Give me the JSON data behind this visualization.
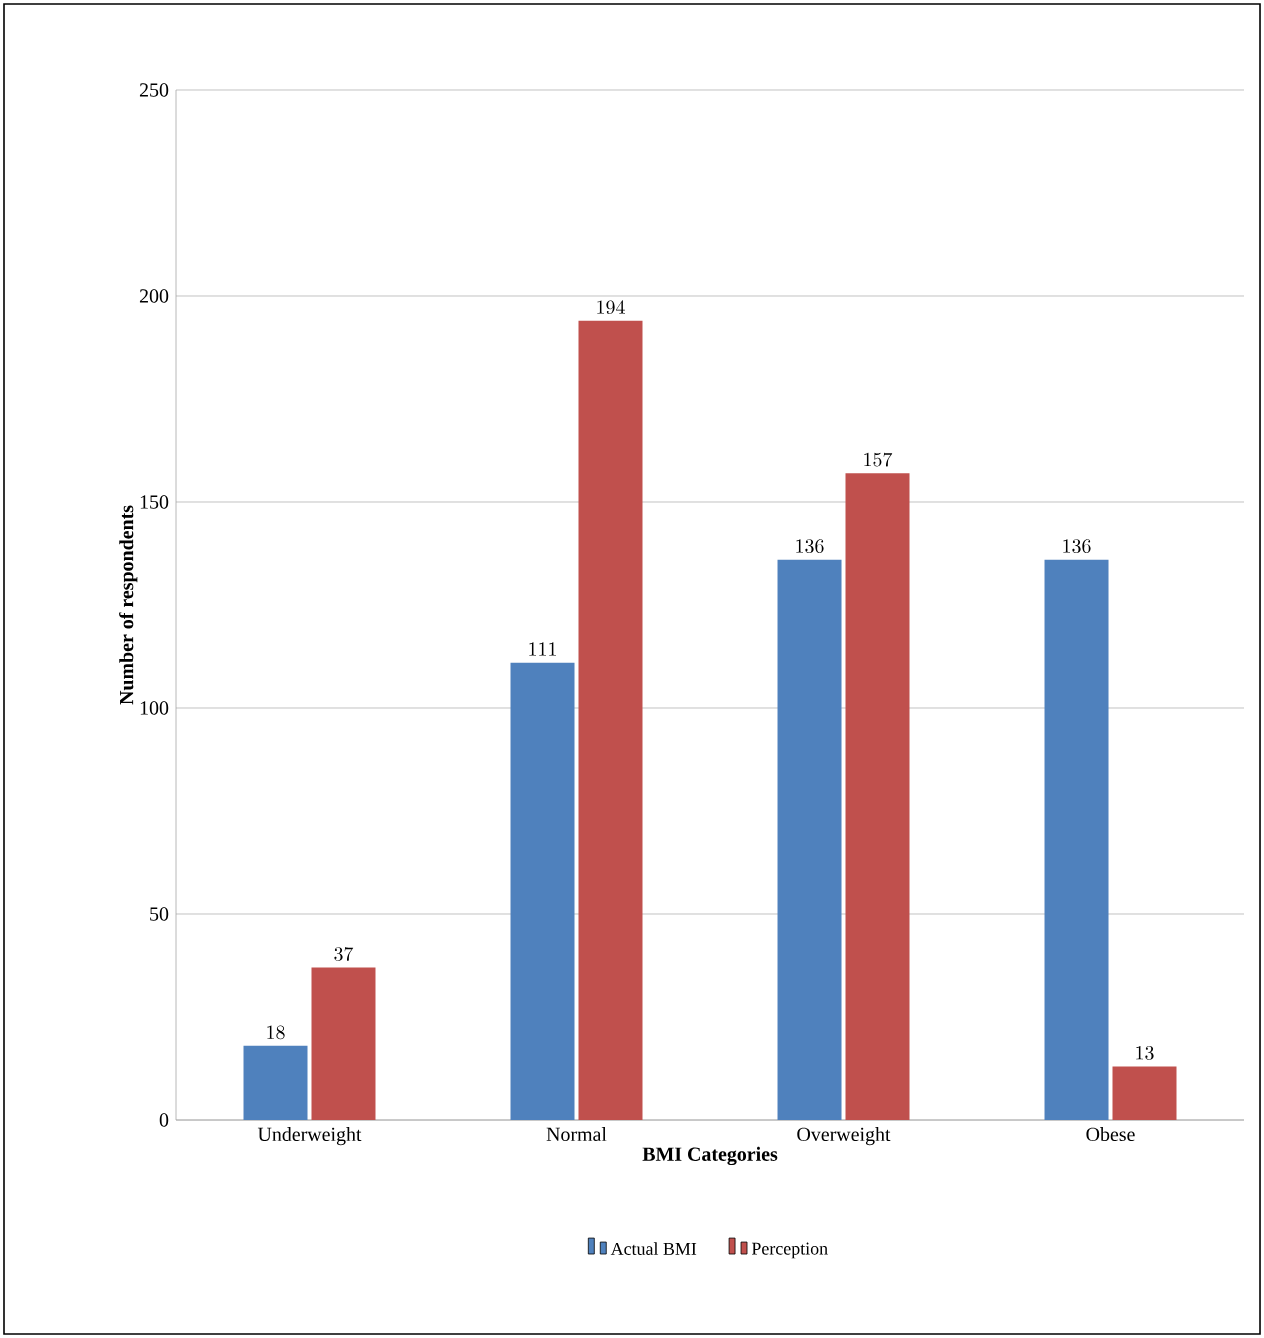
{
  "chart_data": {
    "type": "bar",
    "xlabel": "BMI Categories",
    "ylabel": "Number of respondents",
    "categories": [
      "Underweight",
      "Normal",
      "Overweight",
      "Obese"
    ],
    "series": [
      {
        "name": "Actual BMI",
        "color": "#4f81bd",
        "values": [
          18,
          111,
          136,
          136
        ]
      },
      {
        "name": "Perception",
        "color": "#c0504d",
        "values": [
          37,
          194,
          157,
          13
        ]
      }
    ],
    "ylim": [
      0,
      250
    ],
    "yticks": [
      0,
      50,
      100,
      150,
      200,
      250
    ],
    "grid": "y",
    "legend": "bottom",
    "data_labels": true
  }
}
